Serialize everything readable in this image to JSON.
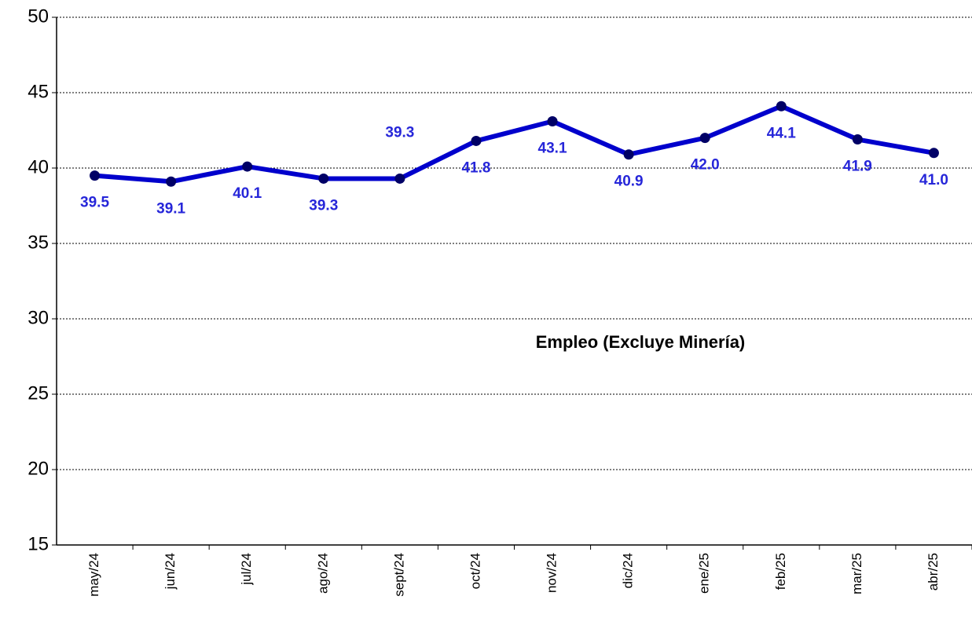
{
  "chart_data": {
    "type": "line",
    "title": "Empleo (Excluye Minería)",
    "categories": [
      "may/24",
      "jun/24",
      "jul/24",
      "ago/24",
      "sept/24",
      "oct/24",
      "nov/24",
      "dic/24",
      "ene/25",
      "feb/25",
      "mar/25",
      "abr/25"
    ],
    "series": [
      {
        "name": "Empleo (Excluye Minería)",
        "color": "#0000cc",
        "values": [
          39.5,
          39.1,
          40.1,
          39.3,
          39.3,
          41.8,
          43.1,
          40.9,
          42.0,
          44.1,
          41.9,
          41.0
        ],
        "value_labels": [
          "39.5",
          "39.1",
          "40.1",
          "39.3",
          "39.3",
          "41.8",
          "43.1",
          "40.9",
          "42.0",
          "44.1",
          "41.9",
          "41.0"
        ]
      }
    ],
    "ylim": [
      15,
      50
    ],
    "yticks": [
      15,
      20,
      25,
      30,
      35,
      40,
      45,
      50
    ],
    "grid": true
  }
}
